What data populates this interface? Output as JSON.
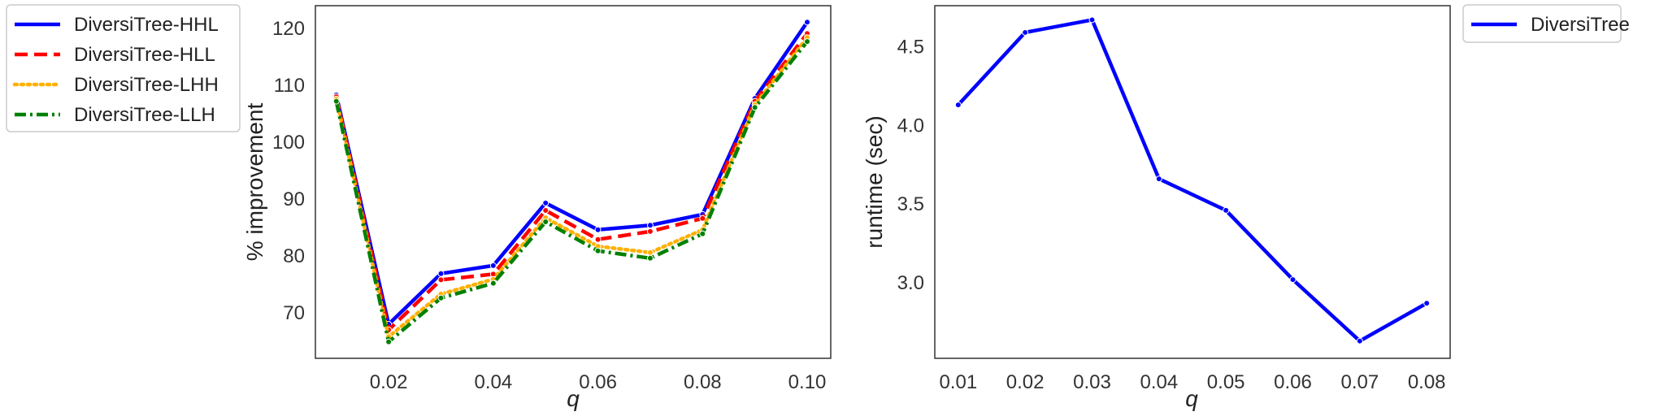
{
  "chart_data": [
    {
      "type": "line",
      "xlabel": "q",
      "ylabel": "% improvement",
      "x": [
        0.01,
        0.02,
        0.03,
        0.04,
        0.05,
        0.06,
        0.07,
        0.08,
        0.09,
        0.1
      ],
      "xticks": [
        0.02,
        0.04,
        0.06,
        0.08,
        0.1
      ],
      "xtick_labels": [
        "0.02",
        "0.04",
        "0.06",
        "0.08",
        "0.10"
      ],
      "yticks": [
        70,
        80,
        90,
        100,
        110,
        120
      ],
      "ytick_labels": [
        "70",
        "80",
        "90",
        "100",
        "110",
        "120"
      ],
      "xlim": [
        0.006,
        0.1045
      ],
      "ylim": [
        62,
        124
      ],
      "grid": false,
      "legend_position": "outside-left",
      "series": [
        {
          "name": "DiversiTree-HHL",
          "color": "#0000ff",
          "dash": "solid",
          "values": [
            108.3,
            68.0,
            76.9,
            78.3,
            89.3,
            84.6,
            85.4,
            87.3,
            107.7,
            121.1
          ]
        },
        {
          "name": "DiversiTree-HLL",
          "color": "#ff0000",
          "dash": "dashed",
          "values": [
            108.0,
            67.0,
            75.8,
            76.8,
            88.0,
            82.9,
            84.3,
            86.6,
            107.2,
            119.1
          ]
        },
        {
          "name": "DiversiTree-LHH",
          "color": "#ffb000",
          "dash": "dotted",
          "values": [
            107.6,
            65.8,
            73.3,
            75.9,
            86.7,
            81.7,
            80.6,
            84.6,
            106.6,
            118.4
          ]
        },
        {
          "name": "DiversiTree-LLH",
          "color": "#008000",
          "dash": "dashdot",
          "values": [
            107.2,
            64.9,
            72.6,
            75.2,
            86.0,
            80.9,
            79.6,
            83.9,
            106.1,
            117.7
          ]
        }
      ]
    },
    {
      "type": "line",
      "xlabel": "q",
      "ylabel": "runtime (sec)",
      "x": [
        0.01,
        0.02,
        0.03,
        0.04,
        0.05,
        0.06,
        0.07,
        0.08
      ],
      "xticks": [
        0.01,
        0.02,
        0.03,
        0.04,
        0.05,
        0.06,
        0.07,
        0.08
      ],
      "xtick_labels": [
        "0.01",
        "0.02",
        "0.03",
        "0.04",
        "0.05",
        "0.06",
        "0.07",
        "0.08"
      ],
      "yticks": [
        3.0,
        3.5,
        4.0,
        4.5
      ],
      "ytick_labels": [
        "3.0",
        "3.5",
        "4.0",
        "4.5"
      ],
      "xlim": [
        0.0065,
        0.0835
      ],
      "ylim": [
        2.52,
        4.76
      ],
      "grid": false,
      "legend_position": "outside-right",
      "series": [
        {
          "name": "DiversiTree",
          "color": "#0000ff",
          "dash": "solid",
          "values": [
            4.13,
            4.59,
            4.67,
            3.66,
            3.46,
            3.02,
            2.63,
            2.87
          ]
        }
      ]
    }
  ]
}
